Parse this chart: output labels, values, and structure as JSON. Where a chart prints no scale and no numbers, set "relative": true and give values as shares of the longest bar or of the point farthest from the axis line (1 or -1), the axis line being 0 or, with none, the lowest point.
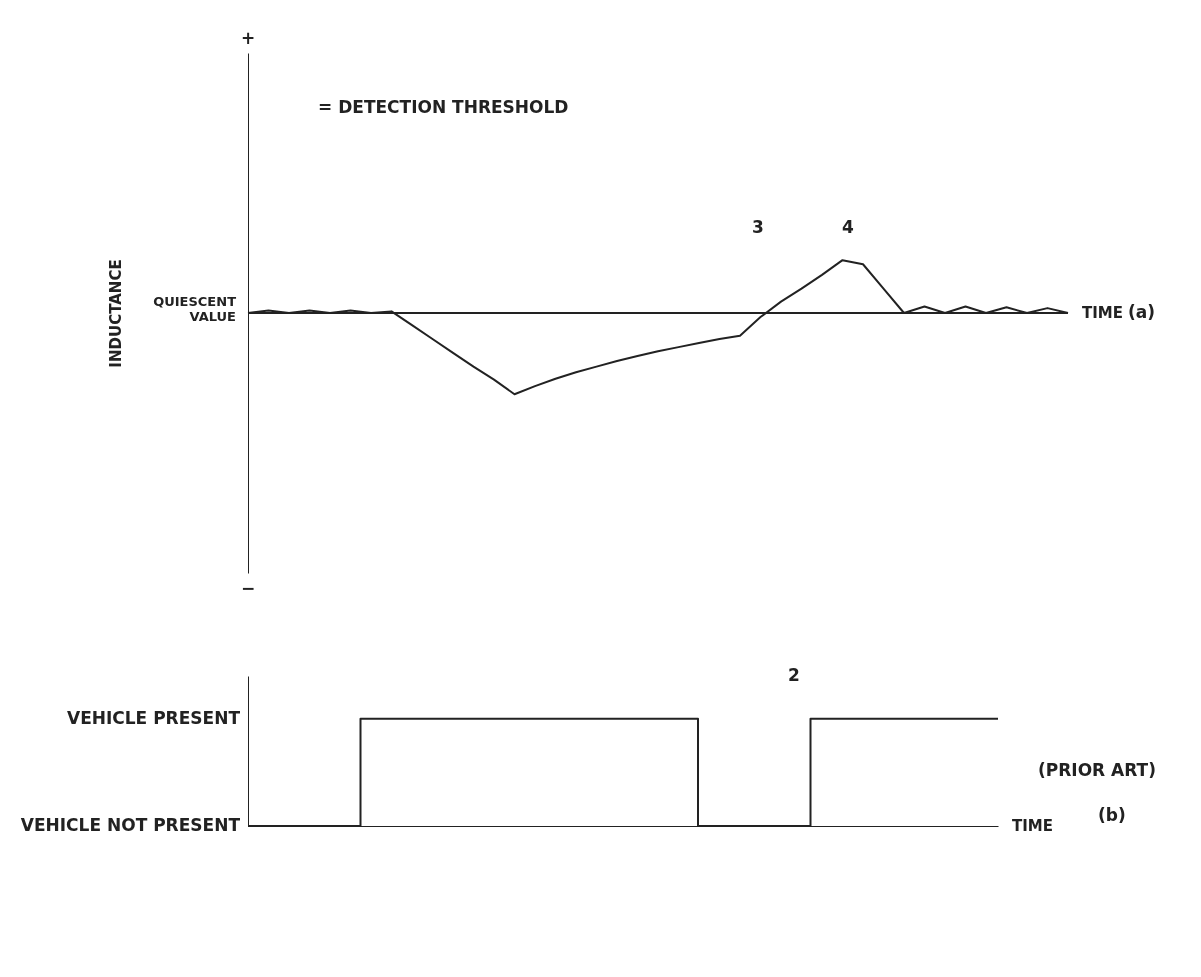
{
  "chart_data": [
    {
      "type": "line",
      "relative": true,
      "ylabel": "INDUCTANCE",
      "xlabel": "TIME",
      "marker": "none",
      "line_style": "solid",
      "grid": false,
      "legend": false,
      "tick_labels": false,
      "categories": [
        null,
        null,
        null,
        null,
        null,
        null,
        null,
        null,
        null,
        null,
        null,
        null,
        null,
        null,
        null,
        null,
        null,
        null,
        null,
        null,
        null,
        null,
        null,
        null,
        null,
        null,
        null,
        null,
        null,
        null,
        null,
        null,
        null,
        null,
        null,
        null,
        null,
        null,
        null,
        null,
        null
      ],
      "series": [
        {
          "color": "#222222",
          "values": [
            0,
            0.03,
            0,
            0.03,
            0,
            0.03,
            0,
            0.02,
            -0.15,
            -0.32,
            -0.49,
            -0.66,
            -0.82,
            -1,
            -0.9,
            -0.81,
            -0.73,
            -0.66,
            -0.59,
            -0.53,
            -0.47,
            -0.42,
            -0.37,
            -0.32,
            -0.28,
            -0.05,
            0.14,
            0.3,
            0.47,
            0.65,
            0.6,
            0.3,
            0,
            0.08,
            0,
            0.08,
            0,
            0.07,
            0,
            0.06,
            0
          ]
        }
      ],
      "ref_lines": [
        {
          "axis": "y",
          "value": 0,
          "label": "QUIESCENT VALUE",
          "color": "#222222"
        }
      ],
      "annotations": [
        "+",
        "−",
        "= DETECTION THRESHOLD",
        "3",
        "4",
        "(a)"
      ]
    },
    {
      "type": "step",
      "relative": true,
      "xlabel": "TIME",
      "marker": "none",
      "line_style": "solid",
      "grid": false,
      "legend": false,
      "tick_labels": false,
      "categories": [
        null,
        null,
        null,
        null,
        null,
        null,
        null,
        null,
        null,
        null,
        null,
        null,
        null,
        null,
        null,
        null,
        null,
        null,
        null,
        null,
        null
      ],
      "series": [
        {
          "color": "#222222",
          "values": [
            0,
            0,
            0,
            1,
            1,
            1,
            1,
            1,
            1,
            1,
            1,
            1,
            0,
            0,
            0,
            1,
            1,
            1,
            1,
            1,
            1
          ]
        }
      ],
      "annotations": [
        "VEHICLE PRESENT",
        "VEHICLE NOT PRESENT",
        "2",
        "(PRIOR ART)",
        "(b)"
      ]
    }
  ]
}
